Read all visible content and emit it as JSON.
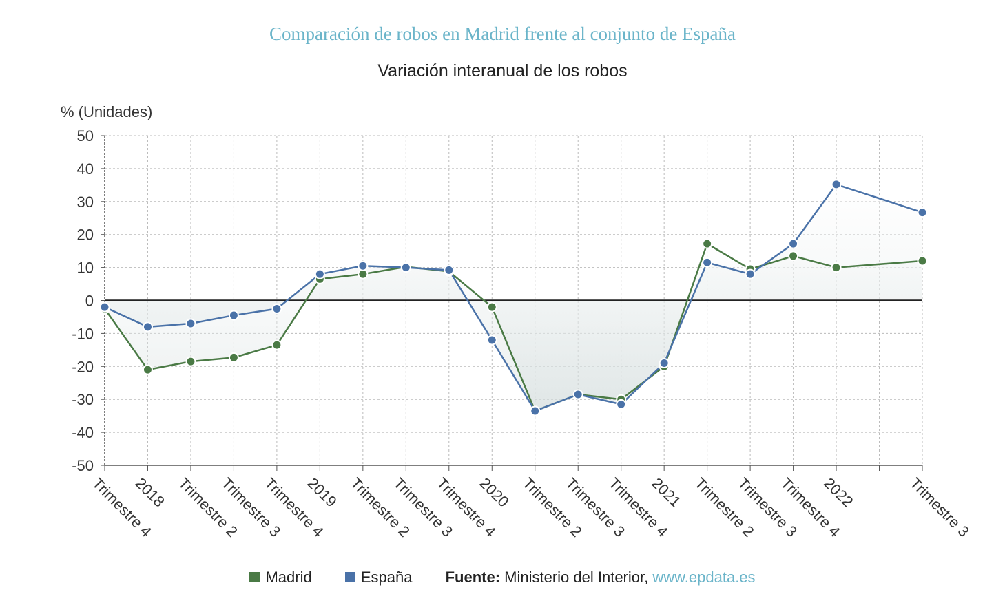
{
  "title": "Comparación de robos en Madrid frente al conjunto de España",
  "subtitle": "Variación interanual de los robos",
  "legend": {
    "madrid_label": "Madrid",
    "espana_label": "España",
    "source_label": "Fuente:",
    "source_text": " Ministerio del Interior, ",
    "source_link": "www.epdata.es"
  },
  "colors": {
    "madrid": "#4a7a45",
    "espana": "#4a72a8",
    "title": "#6ab4c9",
    "grid": "#bbbbbb"
  },
  "chart_data": {
    "type": "line",
    "ylabel": "% (Unidades)",
    "ylim": [
      -50,
      50
    ],
    "yticks": [
      50,
      40,
      30,
      20,
      10,
      0,
      -10,
      -20,
      -30,
      -40,
      -50
    ],
    "categories": [
      "Trimestre 4",
      "2018",
      "Trimestre 2",
      "Trimestre 3",
      "Trimestre 4",
      "2019",
      "Trimestre 2",
      "Trimestre 3",
      "Trimestre 4",
      "2020",
      "Trimestre 2",
      "Trimestre 3",
      "Trimestre 4",
      "2021",
      "Trimestre 2",
      "Trimestre 3",
      "Trimestre 4",
      "2022",
      "",
      "Trimestre 3"
    ],
    "series": [
      {
        "name": "Madrid",
        "values": [
          -2.5,
          -21,
          -18.5,
          -17.3,
          -13.5,
          6.5,
          8,
          10.2,
          8.8,
          -2,
          -33.5,
          -28.5,
          -30,
          -20,
          17.2,
          9.5,
          13.5,
          10,
          null,
          12
        ]
      },
      {
        "name": "España",
        "values": [
          -2,
          -8,
          -7,
          -4.5,
          -2.5,
          8,
          10.5,
          10,
          9.2,
          -12,
          -33.5,
          -28.5,
          -31.5,
          -19,
          11.5,
          8,
          17.2,
          35.2,
          null,
          26.7
        ]
      }
    ]
  }
}
